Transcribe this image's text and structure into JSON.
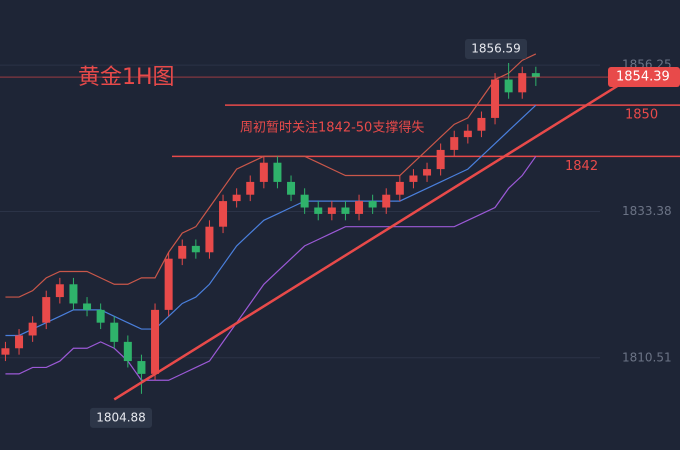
{
  "chart_data": {
    "type": "candlestick",
    "title": "黄金1H图",
    "annotation": "周初暂时关注1842-50支撑得失",
    "up_color": "#e84a4a",
    "down_color": "#2fb36b",
    "xlim": [
      -0.4,
      49.6
    ],
    "ylim": [
      1796.1,
      1866.43
    ],
    "yticks": [
      1856.25,
      1833.38,
      1810.51
    ],
    "levels": [
      1850,
      1842
    ],
    "open": [
      1811,
      1812,
      1814,
      1816,
      1820,
      1822,
      1819,
      1818,
      1816,
      1813,
      1810,
      1808,
      1818,
      1826,
      1828,
      1827,
      1831,
      1835,
      1836,
      1838,
      1841,
      1838,
      1836,
      1834,
      1833,
      1834,
      1833,
      1835,
      1834,
      1836,
      1838,
      1839,
      1840,
      1843,
      1845,
      1846,
      1848,
      1854,
      1852,
      1855
    ],
    "high": [
      1813,
      1815,
      1817,
      1821,
      1823,
      1823,
      1820,
      1819,
      1817,
      1814,
      1811,
      1819,
      1827,
      1829,
      1829,
      1832,
      1836,
      1837,
      1839,
      1842,
      1842,
      1839,
      1837,
      1835,
      1835,
      1835,
      1836,
      1836,
      1837,
      1839,
      1840,
      1841,
      1844,
      1846,
      1847,
      1849,
      1855,
      1856.59,
      1856,
      1856
    ],
    "low": [
      1810,
      1811,
      1813,
      1815,
      1819,
      1818,
      1817,
      1815,
      1812,
      1809,
      1804.88,
      1807,
      1817,
      1825,
      1826,
      1826,
      1830,
      1834,
      1835,
      1837,
      1837,
      1835,
      1833,
      1832,
      1832,
      1832,
      1832,
      1833,
      1833,
      1835,
      1837,
      1838,
      1839,
      1842,
      1844,
      1845,
      1847,
      1851,
      1851,
      1853
    ],
    "close": [
      1812,
      1814,
      1816,
      1820,
      1822,
      1819,
      1818,
      1816,
      1813,
      1810,
      1808,
      1818,
      1826,
      1828,
      1827,
      1831,
      1835,
      1836,
      1838,
      1841,
      1838,
      1836,
      1834,
      1833,
      1834,
      1833,
      1835,
      1834,
      1836,
      1838,
      1839,
      1840,
      1843,
      1845,
      1846,
      1848,
      1854,
      1852,
      1855,
      1854.39
    ],
    "series": [
      {
        "color": "#c9574a",
        "values": [
          1820,
          1820,
          1821,
          1823,
          1824,
          1824,
          1824,
          1823,
          1822,
          1822,
          1823,
          1823,
          1827,
          1830,
          1831,
          1834,
          1837,
          1840,
          1841,
          1842,
          1842,
          1842,
          1842,
          1841,
          1840,
          1839,
          1839,
          1839,
          1839,
          1839,
          1841,
          1843,
          1845,
          1847,
          1848,
          1851,
          1854,
          1855,
          1857,
          1858
        ]
      },
      {
        "color": "#4a7fdc",
        "values": [
          1814,
          1814,
          1815,
          1816,
          1817,
          1818,
          1818,
          1818,
          1817,
          1816,
          1815,
          1815,
          1817,
          1819,
          1820,
          1822,
          1825,
          1828,
          1830,
          1832,
          1833,
          1834,
          1835,
          1835,
          1835,
          1835,
          1835,
          1835,
          1835,
          1835,
          1836,
          1837,
          1838,
          1839,
          1840,
          1842,
          1844,
          1846,
          1848,
          1850
        ]
      },
      {
        "color": "#9b59d6",
        "values": [
          1808,
          1808,
          1809,
          1809,
          1810,
          1812,
          1812,
          1813,
          1812,
          1810,
          1807,
          1807,
          1807,
          1808,
          1809,
          1810,
          1813,
          1816,
          1819,
          1822,
          1824,
          1826,
          1828,
          1829,
          1830,
          1831,
          1831,
          1831,
          1831,
          1831,
          1831,
          1831,
          1831,
          1831,
          1832,
          1833,
          1834,
          1837,
          1839,
          1842
        ]
      }
    ],
    "trendline": {
      "x": [
        8,
        45
      ],
      "y": [
        1804,
        1853
      ],
      "color": "#e84a4a"
    }
  }
}
